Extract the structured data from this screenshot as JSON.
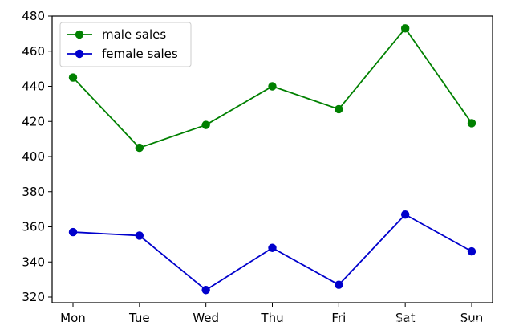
{
  "chart_data": {
    "type": "line",
    "categories": [
      "Mon",
      "Tue",
      "Wed",
      "Thu",
      "Fri",
      "Sat",
      "Sun"
    ],
    "series": [
      {
        "name": "male sales",
        "values": [
          445,
          405,
          418,
          440,
          427,
          473,
          419
        ],
        "color": "#008000",
        "marker": "circle"
      },
      {
        "name": "female sales",
        "values": [
          357,
          355,
          324,
          348,
          327,
          367,
          346
        ],
        "color": "#0000cc",
        "marker": "circle"
      }
    ],
    "yticks": [
      320,
      340,
      360,
      380,
      400,
      420,
      440,
      460,
      480
    ],
    "ylim": [
      316.8,
      480
    ],
    "title": "",
    "xlabel": "",
    "ylabel": "",
    "grid": false,
    "legend_position": "top-left"
  },
  "watermark": {
    "text": "云栖社区 yq.aliyun.com"
  }
}
